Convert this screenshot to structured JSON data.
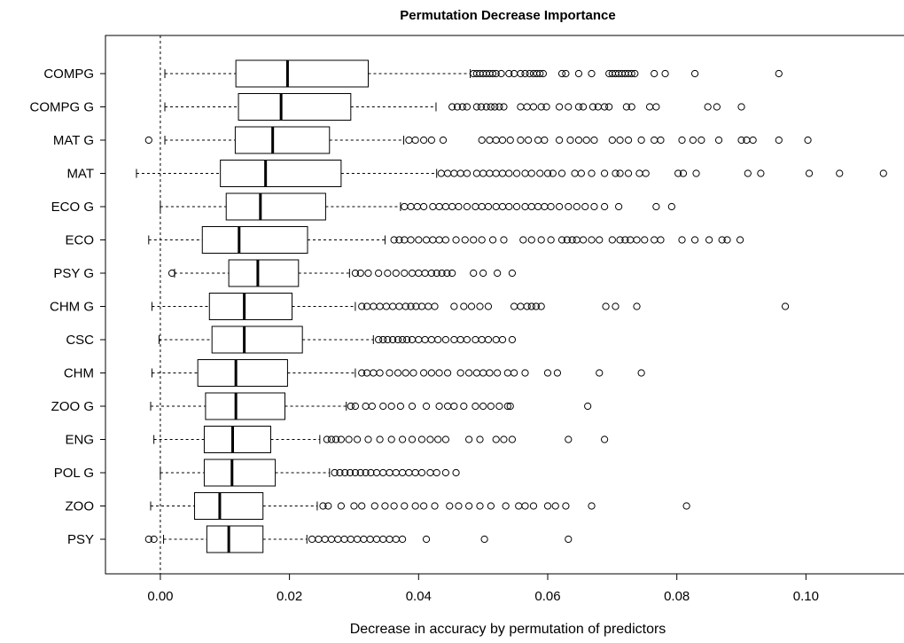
{
  "chart_data": {
    "type": "boxplot",
    "title": "Permutation Decrease Importance",
    "xlabel": "Decrease in accuracy by permutation of predictors",
    "ylabel": "",
    "xlim": [
      -0.0085,
      0.1145
    ],
    "xticks": [
      0.0,
      0.02,
      0.04,
      0.06,
      0.08,
      0.1
    ],
    "xtick_labels": [
      "0.00",
      "0.02",
      "0.04",
      "0.06",
      "0.08",
      "0.10"
    ],
    "reference_line_x": 0.0,
    "grid": false,
    "orientation": "horizontal",
    "categories": [
      {
        "name": "COMPG",
        "whislo": 0.0007,
        "q1": 0.0117,
        "med": 0.0197,
        "q3": 0.0322,
        "whishi": 0.048,
        "outliers": [
          0.0485,
          0.049,
          0.0495,
          0.05,
          0.0505,
          0.051,
          0.0515,
          0.052,
          0.0528,
          0.054,
          0.0548,
          0.0558,
          0.0565,
          0.0572,
          0.0578,
          0.0583,
          0.0588,
          0.0593,
          0.0622,
          0.0628,
          0.0648,
          0.0668,
          0.0695,
          0.07,
          0.0705,
          0.071,
          0.0715,
          0.072,
          0.0725,
          0.073,
          0.0735,
          0.0765,
          0.0782,
          0.0828,
          0.0958
        ]
      },
      {
        "name": "COMPG G",
        "whislo": 0.0007,
        "q1": 0.0121,
        "med": 0.0187,
        "q3": 0.0295,
        "whishi": 0.0427,
        "outliers": [
          0.0452,
          0.046,
          0.0468,
          0.0475,
          0.049,
          0.0497,
          0.0505,
          0.0512,
          0.0518,
          0.0525,
          0.0532,
          0.0558,
          0.0568,
          0.0578,
          0.059,
          0.0598,
          0.0618,
          0.0632,
          0.0648,
          0.0655,
          0.067,
          0.0678,
          0.0688,
          0.0695,
          0.0722,
          0.073,
          0.0758,
          0.0768,
          0.0848,
          0.0862,
          0.09
        ]
      },
      {
        "name": "MAT G",
        "whislo": 0.0007,
        "q1": 0.0116,
        "med": 0.0174,
        "q3": 0.0262,
        "whishi": 0.0377,
        "outliers": [
          -0.0018,
          0.0385,
          0.0395,
          0.0408,
          0.042,
          0.0438,
          0.0498,
          0.051,
          0.052,
          0.053,
          0.0542,
          0.0558,
          0.057,
          0.0585,
          0.0595,
          0.0618,
          0.0635,
          0.0648,
          0.066,
          0.0672,
          0.07,
          0.0712,
          0.0725,
          0.0745,
          0.0765,
          0.0775,
          0.0808,
          0.0825,
          0.0838,
          0.0865,
          0.09,
          0.0908,
          0.0918,
          0.0958,
          0.1003
        ]
      },
      {
        "name": "MAT",
        "whislo": -0.0037,
        "q1": 0.0093,
        "med": 0.0163,
        "q3": 0.028,
        "whishi": 0.0428,
        "outliers": [
          0.0435,
          0.0445,
          0.0455,
          0.0465,
          0.0475,
          0.049,
          0.05,
          0.051,
          0.052,
          0.053,
          0.054,
          0.0552,
          0.0565,
          0.0575,
          0.0588,
          0.06,
          0.0608,
          0.0622,
          0.0642,
          0.0652,
          0.0668,
          0.0688,
          0.0705,
          0.0712,
          0.0725,
          0.0742,
          0.0752,
          0.0802,
          0.081,
          0.083,
          0.091,
          0.093,
          0.1005,
          0.1052,
          0.112
        ]
      },
      {
        "name": "ECO G",
        "whislo": 0.0,
        "q1": 0.0102,
        "med": 0.0155,
        "q3": 0.0256,
        "whishi": 0.0372,
        "outliers": [
          0.0378,
          0.0388,
          0.0398,
          0.0408,
          0.0422,
          0.0432,
          0.0442,
          0.0452,
          0.0462,
          0.0475,
          0.0488,
          0.0498,
          0.0508,
          0.052,
          0.053,
          0.054,
          0.0552,
          0.0565,
          0.0575,
          0.0585,
          0.0595,
          0.0605,
          0.0618,
          0.0632,
          0.0645,
          0.0658,
          0.0672,
          0.0688,
          0.071,
          0.0768,
          0.0792
        ]
      },
      {
        "name": "ECO",
        "whislo": -0.0018,
        "q1": 0.0065,
        "med": 0.0122,
        "q3": 0.0228,
        "whishi": 0.0348,
        "outliers": [
          0.0362,
          0.037,
          0.0378,
          0.0388,
          0.04,
          0.0412,
          0.0422,
          0.0432,
          0.0442,
          0.0458,
          0.0472,
          0.0485,
          0.0498,
          0.0515,
          0.0532,
          0.0562,
          0.0575,
          0.059,
          0.0605,
          0.0622,
          0.063,
          0.0638,
          0.0645,
          0.0655,
          0.0668,
          0.068,
          0.07,
          0.0712,
          0.072,
          0.0728,
          0.0738,
          0.075,
          0.0765,
          0.0775,
          0.0808,
          0.0828,
          0.085,
          0.087,
          0.0878,
          0.0898
        ]
      },
      {
        "name": "PSY G",
        "whislo": 0.0022,
        "q1": 0.0106,
        "med": 0.0151,
        "q3": 0.0214,
        "whishi": 0.0293,
        "outliers": [
          0.0018,
          0.0302,
          0.031,
          0.0322,
          0.0338,
          0.0352,
          0.0365,
          0.0378,
          0.039,
          0.04,
          0.041,
          0.042,
          0.0428,
          0.0436,
          0.0444,
          0.0452,
          0.0485,
          0.05,
          0.0522,
          0.0545
        ]
      },
      {
        "name": "CHM G",
        "whislo": -0.0013,
        "q1": 0.0076,
        "med": 0.013,
        "q3": 0.0204,
        "whishi": 0.0302,
        "outliers": [
          0.0312,
          0.032,
          0.033,
          0.034,
          0.035,
          0.036,
          0.037,
          0.038,
          0.0388,
          0.0396,
          0.0405,
          0.0415,
          0.0425,
          0.0455,
          0.047,
          0.0482,
          0.0495,
          0.0508,
          0.0548,
          0.0558,
          0.0568,
          0.0575,
          0.0582,
          0.059,
          0.069,
          0.0705,
          0.0738,
          0.0968
        ]
      },
      {
        "name": "CSC",
        "whislo": -0.0002,
        "q1": 0.008,
        "med": 0.013,
        "q3": 0.022,
        "whishi": 0.033,
        "outliers": [
          0.0338,
          0.0345,
          0.0352,
          0.036,
          0.0368,
          0.0375,
          0.0382,
          0.039,
          0.04,
          0.041,
          0.042,
          0.043,
          0.0442,
          0.0455,
          0.0465,
          0.0475,
          0.0488,
          0.0498,
          0.0508,
          0.052,
          0.053,
          0.0545
        ]
      },
      {
        "name": "CHM",
        "whislo": -0.0013,
        "q1": 0.0058,
        "med": 0.0117,
        "q3": 0.0197,
        "whishi": 0.0302,
        "outliers": [
          0.0312,
          0.032,
          0.033,
          0.034,
          0.0355,
          0.0368,
          0.038,
          0.0392,
          0.0408,
          0.042,
          0.0432,
          0.0445,
          0.0465,
          0.0478,
          0.049,
          0.05,
          0.051,
          0.0522,
          0.0538,
          0.0548,
          0.0565,
          0.06,
          0.0615,
          0.068,
          0.0745
        ]
      },
      {
        "name": "ZOO G",
        "whislo": -0.0015,
        "q1": 0.007,
        "med": 0.0117,
        "q3": 0.0193,
        "whishi": 0.0288,
        "outliers": [
          0.0295,
          0.0302,
          0.0318,
          0.0328,
          0.0345,
          0.0358,
          0.0372,
          0.039,
          0.0412,
          0.0432,
          0.0445,
          0.0455,
          0.047,
          0.0488,
          0.05,
          0.0512,
          0.0525,
          0.0538,
          0.0542,
          0.0662
        ]
      },
      {
        "name": "ENG",
        "whislo": -0.001,
        "q1": 0.0068,
        "med": 0.0112,
        "q3": 0.0171,
        "whishi": 0.0247,
        "outliers": [
          0.0258,
          0.0265,
          0.0272,
          0.028,
          0.0292,
          0.0305,
          0.0322,
          0.034,
          0.0358,
          0.0375,
          0.039,
          0.0405,
          0.0418,
          0.043,
          0.0442,
          0.0478,
          0.0495,
          0.052,
          0.0532,
          0.0545,
          0.0632,
          0.0688
        ]
      },
      {
        "name": "POL G",
        "whislo": 0.0,
        "q1": 0.0068,
        "med": 0.0111,
        "q3": 0.0178,
        "whishi": 0.0262,
        "outliers": [
          0.027,
          0.0278,
          0.0286,
          0.0294,
          0.0302,
          0.031,
          0.0318,
          0.0326,
          0.0335,
          0.0345,
          0.0355,
          0.0365,
          0.0375,
          0.0385,
          0.0395,
          0.0405,
          0.0418,
          0.0428,
          0.0442,
          0.0458
        ]
      },
      {
        "name": "ZOO",
        "whislo": -0.0015,
        "q1": 0.0053,
        "med": 0.0092,
        "q3": 0.0159,
        "whishi": 0.0243,
        "outliers": [
          0.0252,
          0.026,
          0.028,
          0.03,
          0.0312,
          0.0332,
          0.0348,
          0.0362,
          0.0378,
          0.0395,
          0.0408,
          0.0425,
          0.0448,
          0.0462,
          0.0478,
          0.0495,
          0.0512,
          0.0535,
          0.0555,
          0.0565,
          0.0578,
          0.06,
          0.0612,
          0.0628,
          0.0668,
          0.0815
        ]
      },
      {
        "name": "PSY",
        "whislo": 0.0005,
        "q1": 0.0072,
        "med": 0.0106,
        "q3": 0.0159,
        "whishi": 0.0227,
        "outliers": [
          -0.0018,
          -0.001,
          0.0235,
          0.0245,
          0.0255,
          0.0265,
          0.0275,
          0.0285,
          0.0295,
          0.0305,
          0.0315,
          0.0325,
          0.0335,
          0.0345,
          0.0355,
          0.0365,
          0.0375,
          0.0412,
          0.0502,
          0.0632
        ]
      }
    ]
  }
}
